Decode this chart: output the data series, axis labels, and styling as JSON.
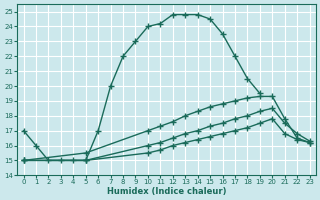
{
  "xlabel": "Humidex (Indice chaleur)",
  "bg_color": "#cce8ec",
  "grid_color": "#ffffff",
  "line_color": "#1a6b5a",
  "series": [
    {
      "x": [
        0,
        1,
        2,
        3,
        4,
        5,
        6,
        7,
        8,
        9,
        10,
        11,
        12,
        13,
        14,
        15,
        16,
        17,
        18,
        19,
        20,
        21,
        22,
        23
      ],
      "y": [
        17,
        16,
        15,
        15,
        15,
        15,
        17,
        20,
        22,
        23,
        24,
        24.2,
        24.8,
        24.8,
        24.8,
        24.5,
        23.5,
        22,
        20.5,
        19.5,
        null,
        null,
        null,
        null
      ]
    },
    {
      "x": [
        0,
        5,
        10,
        11,
        12,
        13,
        14,
        15,
        16,
        17,
        18,
        19,
        20,
        21,
        22,
        23
      ],
      "y": [
        15,
        15,
        15.5,
        15.7,
        16,
        16.2,
        16.4,
        16.6,
        16.8,
        17,
        17.2,
        17.5,
        17.8,
        16.8,
        16.4,
        16.2
      ]
    },
    {
      "x": [
        0,
        5,
        10,
        11,
        12,
        13,
        14,
        15,
        16,
        17,
        18,
        19,
        20,
        21,
        22,
        23
      ],
      "y": [
        15,
        15,
        16,
        16.2,
        16.5,
        16.8,
        17,
        17.3,
        17.5,
        17.8,
        18,
        18.3,
        18.5,
        17.5,
        16.8,
        16.3
      ]
    },
    {
      "x": [
        0,
        5,
        10,
        11,
        12,
        13,
        14,
        15,
        16,
        17,
        18,
        19,
        20,
        21,
        22,
        23
      ],
      "y": [
        15,
        15.5,
        17,
        17.3,
        17.6,
        18,
        18.3,
        18.6,
        18.8,
        19,
        19.2,
        19.3,
        19.3,
        17.8,
        16.5,
        16.2
      ]
    }
  ],
  "ylim": [
    14,
    25.5
  ],
  "xlim": [
    -0.5,
    23.5
  ],
  "yticks": [
    14,
    15,
    16,
    17,
    18,
    19,
    20,
    21,
    22,
    23,
    24,
    25
  ],
  "xticks": [
    0,
    1,
    2,
    3,
    4,
    5,
    6,
    7,
    8,
    9,
    10,
    11,
    12,
    13,
    14,
    15,
    16,
    17,
    18,
    19,
    20,
    21,
    22,
    23
  ],
  "marker": "+",
  "markersize": 4,
  "linewidth": 1.0
}
